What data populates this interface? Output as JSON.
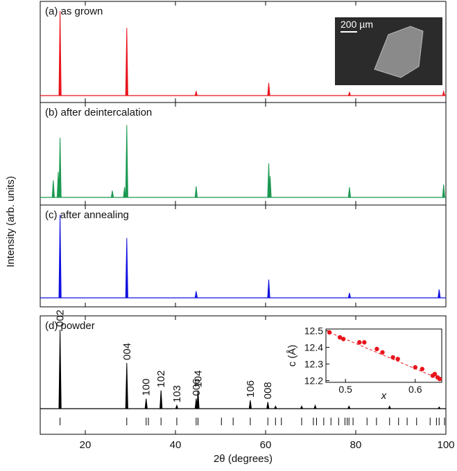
{
  "ylabel": "Intensity (arb. units)",
  "chart_data": [
    {
      "type": "spectrum",
      "title": "(a) as grown",
      "color": "#e8141c",
      "xlim": [
        10,
        100
      ],
      "x": [
        14.4,
        29.2,
        44.6,
        60.7,
        78.6,
        99.5
      ],
      "values": [
        100,
        80,
        5,
        15,
        4,
        5
      ],
      "inset_label": "200 µm"
    },
    {
      "type": "spectrum",
      "title": "(b) after deintercalation",
      "color": "#1a9850",
      "xlim": [
        10,
        100
      ],
      "x": [
        12.9,
        14.0,
        14.4,
        26.0,
        28.7,
        29.2,
        44.6,
        60.7,
        61.0,
        78.6,
        99.5
      ],
      "values": [
        20,
        30,
        70,
        8,
        12,
        85,
        13,
        40,
        25,
        12,
        15
      ]
    },
    {
      "type": "spectrum",
      "title": "(c) after annealing",
      "color": "#1010e0",
      "xlim": [
        10,
        100
      ],
      "x": [
        14.4,
        29.2,
        44.6,
        60.7,
        78.6,
        98.5
      ],
      "values": [
        100,
        72,
        8,
        22,
        6,
        10
      ]
    },
    {
      "type": "spectrum",
      "title": "(d) powder",
      "color": "#000000",
      "xlim": [
        10,
        100
      ],
      "xticks": [
        20,
        40,
        60,
        80,
        100
      ],
      "xlabel": "2θ (degrees)",
      "x": [
        14.4,
        29.2,
        33.5,
        36.8,
        40.3,
        44.6,
        45.0,
        56.6,
        60.5,
        62.2,
        68.0,
        71.0,
        78.5,
        87.5,
        98.5
      ],
      "values": [
        95,
        55,
        12,
        22,
        4,
        12,
        22,
        10,
        8,
        3,
        3,
        4,
        3,
        3,
        2
      ],
      "peak_labels": [
        "002",
        "004",
        "100",
        "102",
        "103",
        "006",
        "104",
        "106",
        "008",
        null,
        null,
        null,
        null,
        null,
        null
      ],
      "reflections": [
        14.4,
        29.2,
        33.5,
        34.0,
        36.8,
        40.3,
        44.6,
        45.0,
        50.2,
        52.8,
        56.6,
        60.5,
        62.2,
        63.5,
        68.0,
        70.6,
        71.3,
        72.9,
        74.5,
        76.2,
        77.6,
        78.1,
        78.5,
        79.4,
        82.5,
        84.6,
        87.5,
        89.5,
        91.4,
        93.5,
        96.5,
        97.9,
        98.5,
        99.7
      ]
    },
    {
      "type": "scatter",
      "xlabel": "x",
      "ylabel": "c (Å)",
      "color": "#e8141c",
      "xlim": [
        0.472,
        0.638
      ],
      "ylim": [
        12.19,
        12.51
      ],
      "xticks": [
        0.5,
        0.6
      ],
      "yticks": [
        12.2,
        12.3,
        12.4,
        12.5
      ],
      "x": [
        0.477,
        0.492,
        0.497,
        0.52,
        0.527,
        0.545,
        0.553,
        0.568,
        0.575,
        0.6,
        0.61,
        0.625,
        0.628,
        0.632,
        0.635
      ],
      "values": [
        12.49,
        12.46,
        12.45,
        12.43,
        12.43,
        12.39,
        12.37,
        12.34,
        12.33,
        12.28,
        12.27,
        12.23,
        12.24,
        12.22,
        12.21
      ]
    }
  ]
}
